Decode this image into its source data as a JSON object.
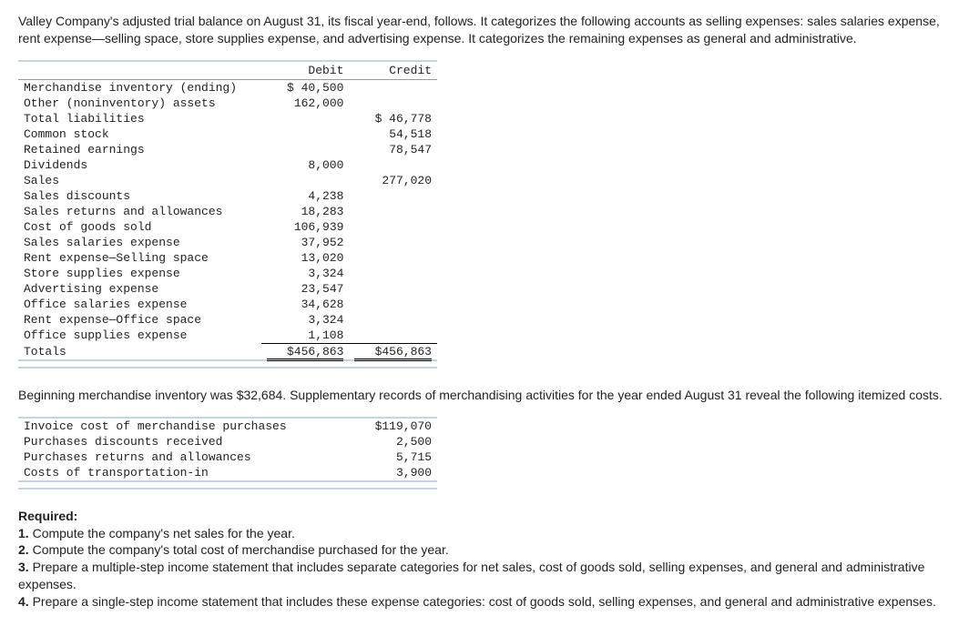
{
  "intro": "Valley Company's adjusted trial balance on August 31, its fiscal year-end, follows. It categorizes the following accounts as selling expenses: sales salaries expense, rent expense—selling space, store supplies expense, and advertising expense. It categorizes the remaining expenses as general and administrative.",
  "tb": {
    "headers": {
      "acct": "",
      "debit": "Debit",
      "credit": "Credit"
    },
    "rows": [
      {
        "acct": "Merchandise inventory (ending)",
        "debit": "$ 40,500",
        "credit": ""
      },
      {
        "acct": "Other (noninventory) assets",
        "debit": "162,000",
        "credit": ""
      },
      {
        "acct": "Total liabilities",
        "debit": "",
        "credit": "$ 46,778"
      },
      {
        "acct": "Common stock",
        "debit": "",
        "credit": "54,518"
      },
      {
        "acct": "Retained earnings",
        "debit": "",
        "credit": "78,547"
      },
      {
        "acct": "Dividends",
        "debit": "8,000",
        "credit": ""
      },
      {
        "acct": "Sales",
        "debit": "",
        "credit": "277,020"
      },
      {
        "acct": "Sales discounts",
        "debit": "4,238",
        "credit": ""
      },
      {
        "acct": "Sales returns and allowances",
        "debit": "18,283",
        "credit": ""
      },
      {
        "acct": "Cost of goods sold",
        "debit": "106,939",
        "credit": ""
      },
      {
        "acct": "Sales salaries expense",
        "debit": "37,952",
        "credit": ""
      },
      {
        "acct": "Rent expense—Selling space",
        "debit": "13,020",
        "credit": ""
      },
      {
        "acct": "Store supplies expense",
        "debit": "3,324",
        "credit": ""
      },
      {
        "acct": "Advertising expense",
        "debit": "23,547",
        "credit": ""
      },
      {
        "acct": "Office salaries expense",
        "debit": "34,628",
        "credit": ""
      },
      {
        "acct": "Rent expense—Office space",
        "debit": "3,324",
        "credit": ""
      },
      {
        "acct": "Office supplies expense",
        "debit": "1,108",
        "credit": ""
      }
    ],
    "totals": {
      "acct": "Totals",
      "debit": "$456,863",
      "credit": "$456,863"
    }
  },
  "mid": "Beginning merchandise inventory was $32,684. Supplementary records of merchandising activities for the year ended August 31 reveal the following itemized costs.",
  "costs": [
    {
      "acct": "Invoice cost of merchandise purchases",
      "val": "$119,070"
    },
    {
      "acct": "Purchases discounts received",
      "val": "2,500"
    },
    {
      "acct": "Purchases returns and allowances",
      "val": "5,715"
    },
    {
      "acct": "Costs of transportation-in",
      "val": "3,900"
    }
  ],
  "required": {
    "heading": "Required:",
    "items": [
      {
        "n": "1.",
        "t": "Compute the company's net sales for the year."
      },
      {
        "n": "2.",
        "t": "Compute the company's total cost of merchandise purchased for the year."
      },
      {
        "n": "3.",
        "t": "Prepare a multiple-step income statement that includes separate categories for net sales, cost of goods sold, selling expenses, and general and administrative expenses."
      },
      {
        "n": "4.",
        "t": "Prepare a single-step income statement that includes these expense categories: cost of goods sold, selling expenses, and general and administrative expenses."
      }
    ]
  }
}
